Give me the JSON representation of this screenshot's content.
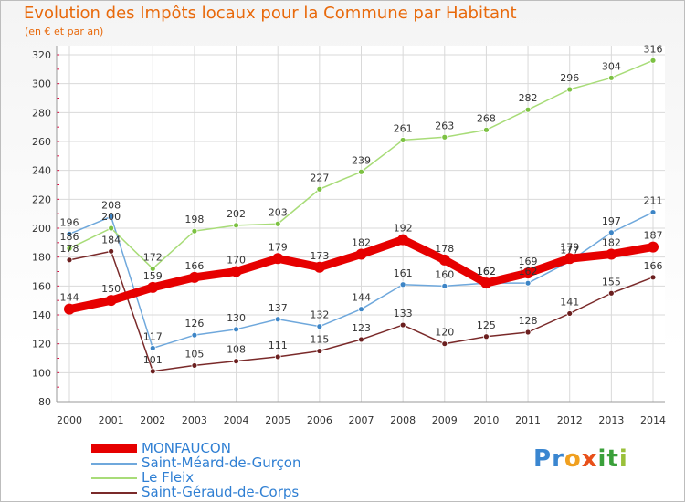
{
  "header": {
    "title": "Evolution des Impôts locaux pour la Commune par Habitant",
    "subtitle": "(en € et par an)"
  },
  "logo": {
    "letters": [
      "P",
      "r",
      "o",
      "x",
      "i",
      "t",
      "i"
    ],
    "colors": [
      "#3a86d0",
      "#3a86d0",
      "#f0a020",
      "#e8501a",
      "#3aa03a",
      "#3aa03a",
      "#9ac03a"
    ]
  },
  "colors": {
    "title": "#e8690b",
    "axis_text": "#333333",
    "grid": "#d9d9d9",
    "axis_tick": "#e8003d"
  },
  "chart_data": {
    "type": "line",
    "title": "Evolution des Impôts locaux pour la Commune par Habitant",
    "subtitle": "(en € et par an)",
    "xlabel": "",
    "ylabel": "",
    "ylim": [
      80,
      320
    ],
    "yticks": [
      80,
      100,
      120,
      140,
      160,
      180,
      200,
      220,
      240,
      260,
      280,
      300,
      320
    ],
    "grid": true,
    "legend_position": "bottom-left",
    "x": [
      "2000",
      "2001",
      "2002",
      "2003",
      "2004",
      "2005",
      "2006",
      "2007",
      "2008",
      "2009",
      "2010",
      "2011",
      "2012",
      "2013",
      "2014"
    ],
    "series": [
      {
        "name": "MONFAUCON",
        "color": "#e60000",
        "marker": "#e60000",
        "values": [
          144,
          150,
          159,
          166,
          170,
          179,
          173,
          182,
          192,
          178,
          162,
          169,
          179,
          182,
          187
        ],
        "labels": [
          "144",
          "150",
          "159",
          "166",
          "170",
          "179",
          "173",
          "182",
          "192",
          "178",
          "162",
          "169",
          "179",
          "182",
          "187"
        ]
      },
      {
        "name": "Saint-Méard-de-Gurçon",
        "color": "#6fa8dc",
        "marker": "#3d85c6",
        "values": [
          196,
          208,
          117,
          126,
          130,
          137,
          132,
          144,
          161,
          160,
          162,
          162,
          177,
          197,
          211
        ],
        "labels": [
          "196",
          "208",
          "117",
          "126",
          "130",
          "137",
          "132",
          "144",
          "161",
          "160",
          "162",
          "162",
          "177",
          "197",
          "211"
        ]
      },
      {
        "name": "Le Fleix",
        "color": "#a8dc78",
        "marker": "#7cc142",
        "values": [
          186,
          200,
          172,
          198,
          202,
          203,
          227,
          239,
          261,
          263,
          268,
          282,
          296,
          304,
          316
        ],
        "labels": [
          "186",
          "200",
          "172",
          "198",
          "202",
          "203",
          "227",
          "239",
          "261",
          "263",
          "268",
          "282",
          "296",
          "304",
          "316"
        ]
      },
      {
        "name": "Saint-Géraud-de-Corps",
        "color": "#7a2a2a",
        "marker": "#6b1f1f",
        "values": [
          178,
          184,
          101,
          105,
          108,
          111,
          115,
          123,
          133,
          120,
          125,
          128,
          141,
          155,
          166
        ],
        "labels": [
          "178",
          "184",
          "101",
          "105",
          "108",
          "111",
          "115",
          "123",
          "133",
          "120",
          "125",
          "128",
          "141",
          "155",
          "166"
        ]
      }
    ]
  }
}
